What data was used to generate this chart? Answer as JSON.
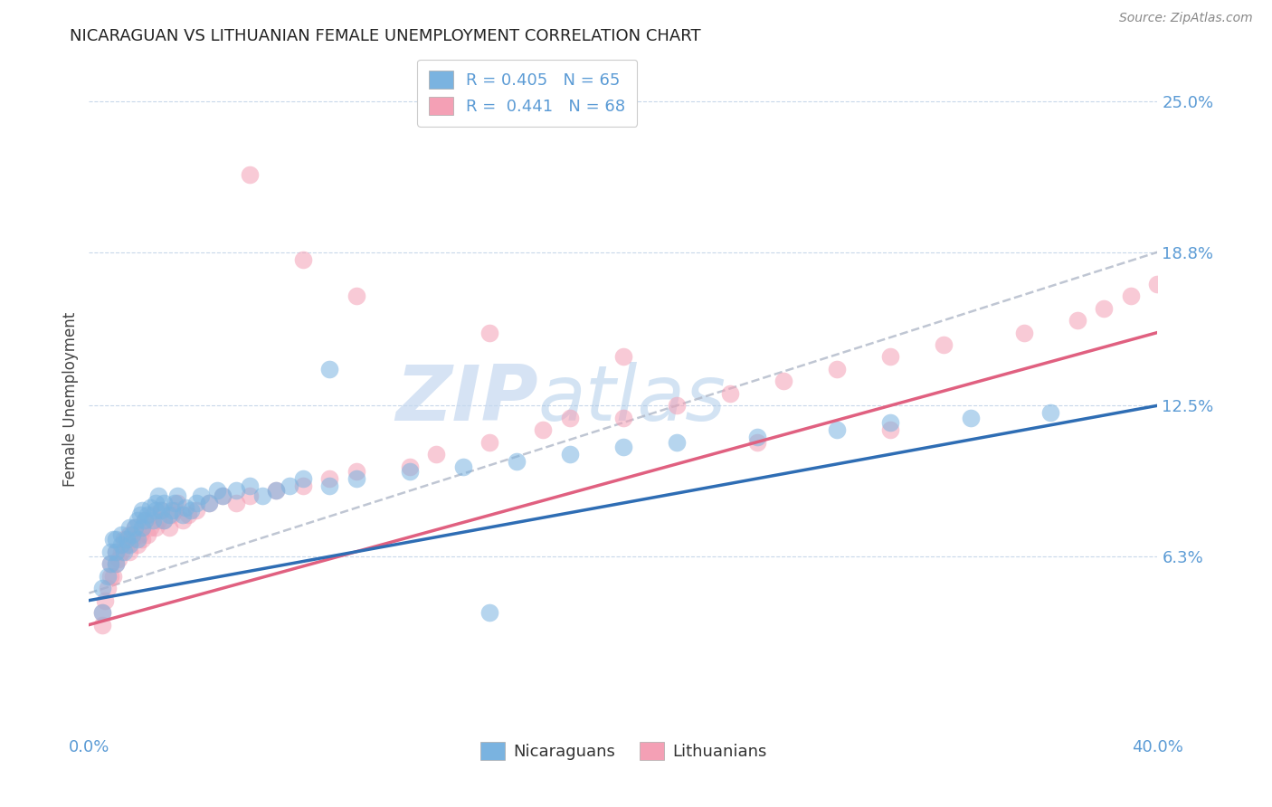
{
  "title": "NICARAGUAN VS LITHUANIAN FEMALE UNEMPLOYMENT CORRELATION CHART",
  "source_text": "Source: ZipAtlas.com",
  "ylabel": "Female Unemployment",
  "x_min": 0.0,
  "x_max": 0.4,
  "y_min": -0.01,
  "y_max": 0.265,
  "x_ticks": [
    0.0,
    0.4
  ],
  "x_tick_labels": [
    "0.0%",
    "40.0%"
  ],
  "y_ticks": [
    0.063,
    0.125,
    0.188,
    0.25
  ],
  "y_tick_labels": [
    "6.3%",
    "12.5%",
    "18.8%",
    "25.0%"
  ],
  "nicaraguan_color": "#7ab3e0",
  "lithuanian_color": "#f4a0b5",
  "nicaraguan_R": 0.405,
  "nicaraguan_N": 65,
  "lithuanian_R": 0.441,
  "lithuanian_N": 68,
  "legend_label_1": "Nicaraguans",
  "legend_label_2": "Lithuanians",
  "watermark_zip": "ZIP",
  "watermark_atlas": "atlas",
  "title_fontsize": 13,
  "label_color": "#5b9bd5",
  "background_color": "#ffffff",
  "grid_color": "#c8d8ea",
  "nic_line_color": "#2e6db4",
  "lit_line_color": "#e06080",
  "dashed_line_color": "#b0b8c8",
  "nicaraguan_scatter_x": [
    0.005,
    0.005,
    0.007,
    0.008,
    0.008,
    0.009,
    0.01,
    0.01,
    0.01,
    0.012,
    0.012,
    0.013,
    0.014,
    0.015,
    0.015,
    0.016,
    0.017,
    0.018,
    0.018,
    0.019,
    0.02,
    0.02,
    0.021,
    0.022,
    0.023,
    0.024,
    0.025,
    0.025,
    0.026,
    0.027,
    0.028,
    0.028,
    0.03,
    0.031,
    0.032,
    0.033,
    0.035,
    0.036,
    0.038,
    0.04,
    0.042,
    0.045,
    0.048,
    0.05,
    0.055,
    0.06,
    0.065,
    0.07,
    0.075,
    0.08,
    0.09,
    0.1,
    0.12,
    0.14,
    0.16,
    0.18,
    0.2,
    0.22,
    0.25,
    0.28,
    0.3,
    0.33,
    0.36,
    0.09,
    0.15
  ],
  "nicaraguan_scatter_y": [
    0.04,
    0.05,
    0.055,
    0.06,
    0.065,
    0.07,
    0.06,
    0.065,
    0.07,
    0.068,
    0.072,
    0.065,
    0.07,
    0.075,
    0.068,
    0.072,
    0.075,
    0.07,
    0.078,
    0.08,
    0.075,
    0.082,
    0.078,
    0.08,
    0.083,
    0.078,
    0.082,
    0.085,
    0.088,
    0.082,
    0.078,
    0.085,
    0.08,
    0.082,
    0.085,
    0.088,
    0.08,
    0.083,
    0.082,
    0.085,
    0.088,
    0.085,
    0.09,
    0.088,
    0.09,
    0.092,
    0.088,
    0.09,
    0.092,
    0.095,
    0.092,
    0.095,
    0.098,
    0.1,
    0.102,
    0.105,
    0.108,
    0.11,
    0.112,
    0.115,
    0.118,
    0.12,
    0.122,
    0.14,
    0.04
  ],
  "lithuanian_scatter_x": [
    0.005,
    0.005,
    0.006,
    0.007,
    0.008,
    0.008,
    0.009,
    0.01,
    0.01,
    0.011,
    0.012,
    0.013,
    0.014,
    0.015,
    0.015,
    0.016,
    0.017,
    0.018,
    0.019,
    0.02,
    0.02,
    0.021,
    0.022,
    0.023,
    0.024,
    0.025,
    0.026,
    0.027,
    0.028,
    0.03,
    0.031,
    0.032,
    0.033,
    0.035,
    0.037,
    0.04,
    0.045,
    0.05,
    0.055,
    0.06,
    0.07,
    0.08,
    0.09,
    0.1,
    0.12,
    0.13,
    0.15,
    0.17,
    0.2,
    0.22,
    0.24,
    0.26,
    0.28,
    0.3,
    0.32,
    0.35,
    0.37,
    0.38,
    0.39,
    0.4,
    0.18,
    0.25,
    0.3,
    0.2,
    0.15,
    0.1,
    0.08,
    0.06
  ],
  "lithuanian_scatter_y": [
    0.035,
    0.04,
    0.045,
    0.05,
    0.055,
    0.06,
    0.055,
    0.06,
    0.065,
    0.062,
    0.065,
    0.07,
    0.068,
    0.072,
    0.065,
    0.07,
    0.075,
    0.068,
    0.072,
    0.07,
    0.075,
    0.078,
    0.072,
    0.075,
    0.08,
    0.075,
    0.078,
    0.082,
    0.078,
    0.075,
    0.08,
    0.082,
    0.085,
    0.078,
    0.08,
    0.082,
    0.085,
    0.088,
    0.085,
    0.088,
    0.09,
    0.092,
    0.095,
    0.098,
    0.1,
    0.105,
    0.11,
    0.115,
    0.12,
    0.125,
    0.13,
    0.135,
    0.14,
    0.145,
    0.15,
    0.155,
    0.16,
    0.165,
    0.17,
    0.175,
    0.12,
    0.11,
    0.115,
    0.145,
    0.155,
    0.17,
    0.185,
    0.22
  ]
}
